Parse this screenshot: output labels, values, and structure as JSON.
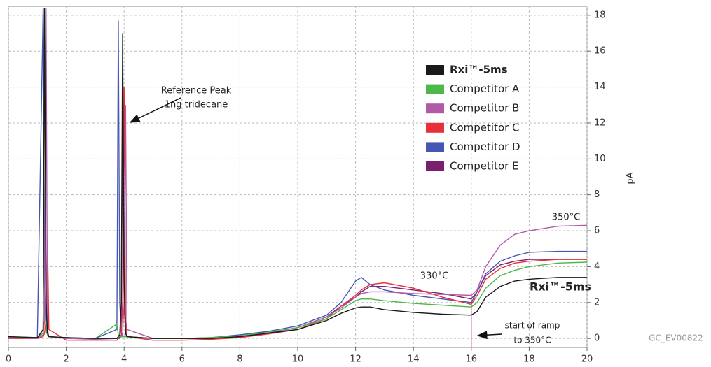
{
  "chart_data": {
    "type": "line",
    "x": [
      0,
      1,
      1.2,
      1.25,
      1.3,
      1.35,
      1.4,
      2,
      3,
      3.75,
      3.8,
      3.85,
      3.9,
      3.95,
      4.0,
      4.05,
      4.1,
      5,
      6,
      7,
      8,
      9,
      10,
      11,
      11.5,
      12,
      12.2,
      12.5,
      13,
      14,
      15,
      16,
      16.2,
      16.5,
      17,
      17.5,
      18,
      19,
      20
    ],
    "series": [
      {
        "name": "Rxi™-5ms",
        "color": "#1a1a1a",
        "values": [
          0.1,
          0.05,
          0.5,
          18.4,
          2,
          0.3,
          0.1,
          0.05,
          0,
          0,
          0.1,
          0.2,
          2,
          17,
          3,
          0.3,
          0.1,
          0,
          0,
          0,
          0.1,
          0.3,
          0.5,
          1.0,
          1.4,
          1.7,
          1.75,
          1.75,
          1.6,
          1.45,
          1.35,
          1.3,
          1.5,
          2.3,
          2.9,
          3.2,
          3.3,
          3.4,
          3.4
        ]
      },
      {
        "name": "Competitor A",
        "color": "#4cb848",
        "values": [
          0.1,
          0.05,
          0.3,
          18,
          1,
          0.2,
          0.1,
          0.05,
          0,
          0.8,
          0.2,
          0.1,
          0.1,
          0.1,
          0.1,
          0.1,
          0.1,
          0,
          0,
          0.05,
          0.15,
          0.35,
          0.6,
          1.1,
          1.6,
          2.1,
          2.2,
          2.2,
          2.1,
          1.95,
          1.85,
          1.75,
          2.0,
          2.8,
          3.5,
          3.8,
          4.0,
          4.2,
          4.25
        ]
      },
      {
        "name": "Competitor B",
        "color": "#b05aa8",
        "values": [
          0.05,
          0,
          0.2,
          1,
          18.4,
          0.5,
          0.1,
          0,
          -0.05,
          0,
          0,
          0,
          0.1,
          0.3,
          2,
          13,
          0.5,
          0,
          0,
          0,
          0.1,
          0.3,
          0.6,
          1.2,
          1.7,
          2.3,
          2.5,
          2.6,
          2.6,
          2.5,
          2.45,
          2.4,
          2.7,
          4.0,
          5.2,
          5.8,
          6.0,
          6.25,
          6.3
        ]
      },
      {
        "name": "Competitor C",
        "color": "#e8303a",
        "values": [
          0,
          0,
          0.1,
          0.3,
          1,
          5.5,
          0.5,
          -0.1,
          -0.1,
          -0.1,
          0,
          0,
          0.2,
          2,
          14,
          1,
          0.1,
          -0.1,
          -0.1,
          -0.05,
          0.05,
          0.25,
          0.5,
          1.1,
          1.8,
          2.4,
          2.7,
          3.0,
          3.1,
          2.8,
          2.3,
          1.9,
          2.4,
          3.3,
          3.9,
          4.2,
          4.3,
          4.4,
          4.4
        ]
      },
      {
        "name": "Competitor D",
        "color": "#4756b5",
        "values": [
          0.05,
          0.05,
          18.4,
          3,
          0.5,
          0.2,
          0.1,
          0.05,
          0,
          0.5,
          17.7,
          2,
          0.3,
          0.1,
          0.1,
          0.1,
          0.1,
          0,
          0,
          0.05,
          0.2,
          0.4,
          0.7,
          1.3,
          2.0,
          3.2,
          3.4,
          3.0,
          2.7,
          2.4,
          2.2,
          2.0,
          2.6,
          3.6,
          4.3,
          4.6,
          4.8,
          4.85,
          4.85
        ]
      },
      {
        "name": "Competitor E",
        "color": "#7a1f6e",
        "values": [
          0.05,
          0,
          0.5,
          18.4,
          3,
          0.3,
          0.1,
          0,
          0,
          0,
          0,
          0.1,
          1,
          12,
          2,
          0.3,
          0.1,
          0,
          0,
          0,
          0.1,
          0.3,
          0.6,
          1.2,
          1.8,
          2.3,
          2.6,
          2.9,
          2.9,
          2.7,
          2.5,
          2.2,
          2.6,
          3.5,
          4.1,
          4.3,
          4.4,
          4.4,
          4.4
        ]
      }
    ],
    "xlim": [
      0,
      20
    ],
    "xticks": [
      0,
      2,
      4,
      6,
      8,
      10,
      12,
      14,
      16,
      18,
      20
    ],
    "ylim": [
      -0.5,
      18.5
    ],
    "yticks": [
      0,
      2,
      4,
      6,
      8,
      10,
      12,
      14,
      16,
      18
    ],
    "y_label": "pA",
    "grid": true,
    "ramp_start_x": 16,
    "annotations": [
      "Reference Peak",
      "1ng tridecane",
      "330°C",
      "350°C",
      "Rxi™-5ms",
      "start of ramp",
      "to 350°C"
    ],
    "figure_id": "GC_EV00822"
  }
}
